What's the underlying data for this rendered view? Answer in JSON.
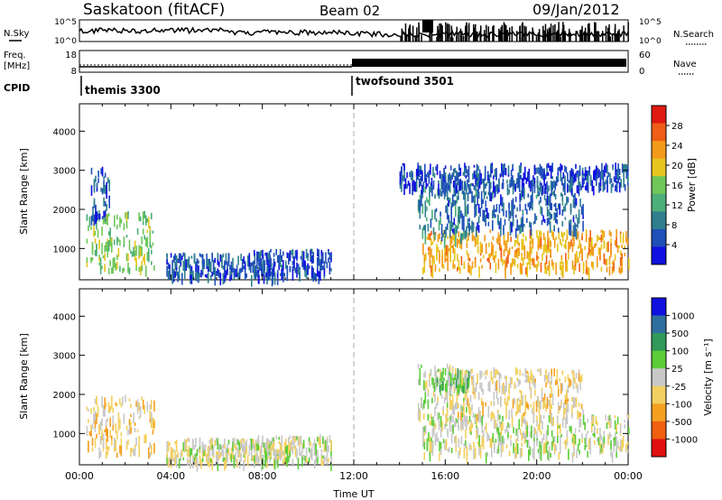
{
  "header": {
    "station": "Saskatoon (fitACF)",
    "beam": "Beam 02",
    "date": "09/Jan/2012"
  },
  "params": {
    "nsky_label": "N.Sky",
    "nsky_ticks": [
      "10^5",
      "10^0"
    ],
    "nsearch_label": "N.Search",
    "nsearch_ticks": [
      "10^5",
      "10^0"
    ],
    "freq_label": [
      "Freq.",
      "[MHz]"
    ],
    "freq_ticks": [
      "18",
      "8"
    ],
    "nave_label": "Nave",
    "nave_ticks": [
      "60",
      "0"
    ],
    "cpid_label": "CPID",
    "cpid_modes": [
      {
        "name": "themis 3300",
        "start_hour": 0
      },
      {
        "name": "twofsound 3501",
        "start_hour": 12
      }
    ]
  },
  "colors": {
    "power_scale": [
      "#1010e0",
      "#1f4fb8",
      "#2f7f8f",
      "#4caf7a",
      "#6fc75a",
      "#e7c51f",
      "#f39a1a",
      "#ef5e16",
      "#e01a10"
    ],
    "velocity_scale": [
      "#1010e0",
      "#2f6fa0",
      "#2f9a5a",
      "#5ccd38",
      "#c8c8c8",
      "#f3d060",
      "#f5a020",
      "#f06010",
      "#e01010"
    ],
    "frame": "#000000",
    "separator": "#aaaaaa"
  },
  "chart_data": [
    {
      "type": "heatmap",
      "title": "",
      "ylabel": "Slant Range [km]",
      "xlabel": "",
      "ylim": [
        200,
        4700
      ],
      "yticks": [
        "1000",
        "2000",
        "3000",
        "4000"
      ],
      "colorbar": {
        "label": "Power [dB]",
        "ticks": [
          "4",
          "8",
          "12",
          "16",
          "20",
          "24",
          "28"
        ],
        "range": [
          0,
          32
        ]
      },
      "regions": [
        {
          "t0": 0.3,
          "t1": 3.3,
          "r0": 500,
          "r1": 2000,
          "value": 16
        },
        {
          "t0": 0.5,
          "t1": 1.3,
          "r0": 1800,
          "r1": 3200,
          "value": 6
        },
        {
          "t0": 3.8,
          "t1": 8.5,
          "r0": 300,
          "r1": 900,
          "value": 6
        },
        {
          "t0": 7.5,
          "t1": 11.0,
          "r0": 300,
          "r1": 1000,
          "value": 5
        },
        {
          "t0": 15.0,
          "t1": 24.0,
          "r0": 500,
          "r1": 1500,
          "value": 22
        },
        {
          "t0": 14.8,
          "t1": 17.0,
          "r0": 1300,
          "r1": 2800,
          "value": 10
        },
        {
          "t0": 16.0,
          "t1": 22.0,
          "r0": 1500,
          "r1": 2700,
          "value": 7
        },
        {
          "t0": 14.0,
          "t1": 24.0,
          "r0": 2600,
          "r1": 3200,
          "value": 5
        }
      ]
    },
    {
      "type": "heatmap",
      "title": "",
      "ylabel": "Slant Range [km]",
      "xlabel": "Time UT",
      "ylim": [
        200,
        4700
      ],
      "yticks": [
        "1000",
        "2000",
        "3000",
        "4000"
      ],
      "xticks": [
        "00:00",
        "04:00",
        "08:00",
        "12:00",
        "16:00",
        "20:00",
        "00:00"
      ],
      "colorbar": {
        "label": "Velocity [m s⁻¹]",
        "ticks": [
          "1000",
          "500",
          "100",
          "25",
          "-25",
          "-100",
          "-500",
          "-1000"
        ],
        "range": [
          -1200,
          1200
        ]
      },
      "regions": [
        {
          "t0": 0.3,
          "t1": 3.3,
          "r0": 500,
          "r1": 2000,
          "value": -250
        },
        {
          "t0": 3.8,
          "t1": 8.5,
          "r0": 300,
          "r1": 900,
          "value": -60
        },
        {
          "t0": 7.5,
          "t1": 11.0,
          "r0": 300,
          "r1": 1000,
          "value": 0
        },
        {
          "t0": 15.0,
          "t1": 24.0,
          "r0": 500,
          "r1": 1500,
          "value": 0
        },
        {
          "t0": 14.8,
          "t1": 17.0,
          "r0": 1300,
          "r1": 2800,
          "value": 0
        },
        {
          "t0": 16.0,
          "t1": 22.0,
          "r0": 1500,
          "r1": 2700,
          "value": -200
        },
        {
          "t0": 15.5,
          "t1": 17.0,
          "r0": 2200,
          "r1": 2700,
          "value": 200
        }
      ]
    }
  ]
}
